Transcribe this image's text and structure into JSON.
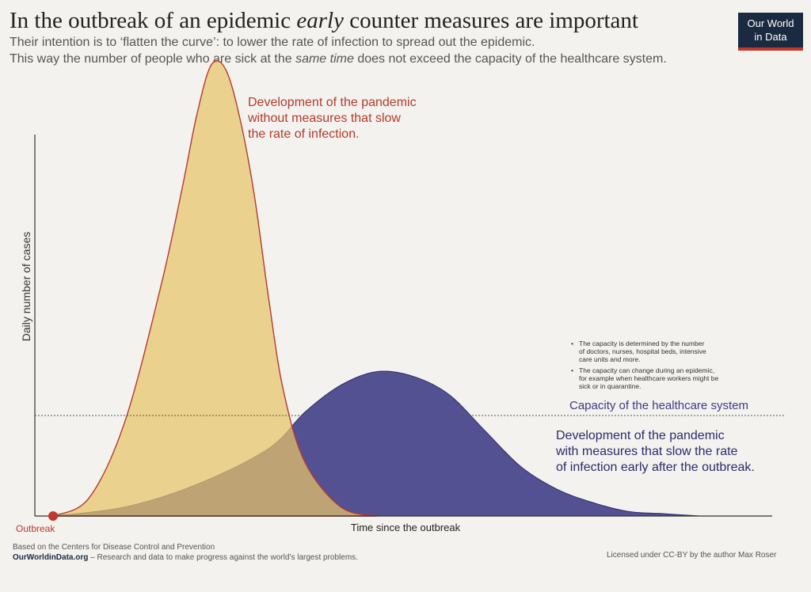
{
  "title_pre": "In the outbreak of an epidemic ",
  "title_em": "early",
  "title_post": " counter measures are important",
  "subtitle1": "Their intention is to ‘flatten the curve’: to lower the rate of infection to spread out the epidemic.",
  "subtitle2_pre": "This way the number of people who are sick at the ",
  "subtitle2_em": "same time",
  "subtitle2_post": " does not exceed the capacity of the healthcare system.",
  "logo": {
    "line1": "Our World",
    "line2": "in Data"
  },
  "colors": {
    "no_measures_fill": "#e7c36a",
    "no_measures_stroke": "#b43a2e",
    "with_measures_fill": "#3e3a85",
    "no_measures_label": "#b43a2e",
    "with_measures_label": "#2d2a6e",
    "capacity_label": "#3e3a85",
    "outbreak_dot": "#c0392b"
  },
  "chart_data": {
    "type": "area",
    "ylabel": "Daily number of cases",
    "xlabel": "Time since the outbreak",
    "origin_label": "Outbreak",
    "series": [
      {
        "name": "Development of the pandemic without measures that slow the rate of infection.",
        "label_lines": [
          "Development of the pandemic",
          "without measures that slow",
          "the rate of infection."
        ],
        "x": [
          0,
          0.05,
          0.1,
          0.15,
          0.18,
          0.2,
          0.22,
          0.24,
          0.26,
          0.28,
          0.3,
          0.32,
          0.35,
          0.4,
          0.45
        ],
        "y": [
          0,
          0.04,
          0.21,
          0.51,
          0.73,
          0.89,
          1.0,
          0.99,
          0.88,
          0.71,
          0.48,
          0.28,
          0.12,
          0.02,
          0
        ]
      },
      {
        "name": "Development of the pandemic with measures that slow the rate of infection early after the outbreak.",
        "label_lines": [
          "Development of the pandemic",
          "with measures that slow the rate",
          "of infection early after the outbreak."
        ],
        "x": [
          0,
          0.1,
          0.2,
          0.3,
          0.35,
          0.4,
          0.45,
          0.5,
          0.55,
          0.6,
          0.65,
          0.7,
          0.75,
          0.8,
          0.85,
          0.9
        ],
        "y": [
          0,
          0.02,
          0.07,
          0.15,
          0.23,
          0.29,
          0.32,
          0.31,
          0.27,
          0.19,
          0.11,
          0.06,
          0.03,
          0.01,
          0.005,
          0
        ]
      }
    ],
    "capacity": {
      "y": 0.23,
      "label": "Capacity of the healthcare system"
    },
    "notes": [
      [
        "The capacity is determined by the number",
        "of doctors, nurses, hospital beds, intensive",
        "care units and more."
      ],
      [
        "The capacity can change during an epidemic,",
        "for example when healthcare workers might be",
        "sick or in quarantine."
      ]
    ]
  },
  "footer": {
    "source": "Based on the Centers for Disease Control and Prevention",
    "site": "OurWorldinData.org",
    "tagline": " – Research and data to make progress against the world’s largest problems.",
    "license": "Licensed under CC-BY by the author Max Roser"
  }
}
